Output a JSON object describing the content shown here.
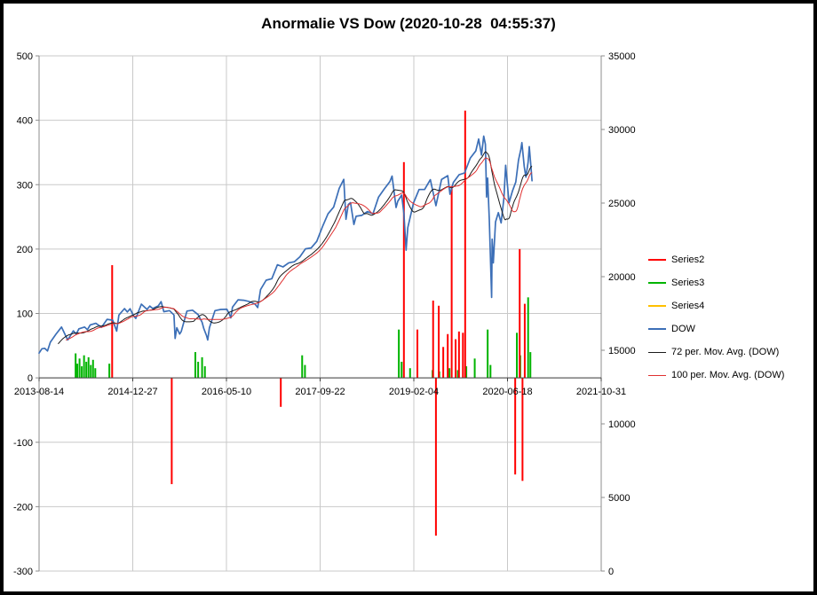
{
  "chart_data": {
    "type": "combo_bar_line",
    "title": "Anormalie VS Dow (2020-10-28  04:55:37)",
    "x_axis": {
      "labels": [
        "2013-08-14",
        "2014-12-27",
        "2016-05-10",
        "2017-09-22",
        "2019-02-04",
        "2020-06-18",
        "2021-10-31"
      ],
      "interval_days": 500
    },
    "left_axis": {
      "min": -300,
      "max": 500,
      "step": 100,
      "ticks": [
        "500",
        "400",
        "300",
        "200",
        "100",
        "0",
        "-100",
        "-200",
        "-300"
      ]
    },
    "right_axis": {
      "min": 0,
      "max": 35000,
      "step": 5000,
      "ticks": [
        "35000",
        "30000",
        "25000",
        "20000",
        "15000",
        "10000",
        "5000",
        "0"
      ]
    },
    "grid": true,
    "legend_position": "right",
    "series": [
      {
        "name": "Series2",
        "type": "bar",
        "axis": "left",
        "color": "#ff0000",
        "width": 2,
        "points": [
          [
            0.13,
            175
          ],
          [
            0.236,
            -165
          ],
          [
            0.43,
            -45
          ],
          [
            0.649,
            335
          ],
          [
            0.673,
            75
          ],
          [
            0.701,
            120
          ],
          [
            0.706,
            -245
          ],
          [
            0.711,
            112
          ],
          [
            0.719,
            48
          ],
          [
            0.727,
            68
          ],
          [
            0.734,
            298
          ],
          [
            0.741,
            60
          ],
          [
            0.747,
            72
          ],
          [
            0.754,
            70
          ],
          [
            0.758,
            415
          ],
          [
            0.847,
            -150
          ],
          [
            0.855,
            200
          ],
          [
            0.86,
            -160
          ],
          [
            0.864,
            115
          ]
        ]
      },
      {
        "name": "Series3",
        "type": "bar",
        "axis": "left",
        "color": "#00b400",
        "width": 2,
        "points": [
          [
            0.065,
            38
          ],
          [
            0.068,
            22
          ],
          [
            0.072,
            30
          ],
          [
            0.076,
            18
          ],
          [
            0.08,
            35
          ],
          [
            0.084,
            25
          ],
          [
            0.088,
            32
          ],
          [
            0.092,
            20
          ],
          [
            0.096,
            28
          ],
          [
            0.1,
            15
          ],
          [
            0.125,
            22
          ],
          [
            0.278,
            40
          ],
          [
            0.283,
            25
          ],
          [
            0.29,
            32
          ],
          [
            0.295,
            18
          ],
          [
            0.468,
            35
          ],
          [
            0.473,
            20
          ],
          [
            0.64,
            75
          ],
          [
            0.645,
            25
          ],
          [
            0.66,
            15
          ],
          [
            0.673,
            20
          ],
          [
            0.7,
            12
          ],
          [
            0.712,
            10
          ],
          [
            0.73,
            15
          ],
          [
            0.745,
            12
          ],
          [
            0.76,
            18
          ],
          [
            0.775,
            30
          ],
          [
            0.798,
            75
          ],
          [
            0.803,
            20
          ],
          [
            0.85,
            70
          ],
          [
            0.856,
            35
          ],
          [
            0.87,
            125
          ],
          [
            0.874,
            40
          ]
        ]
      },
      {
        "name": "Series4",
        "type": "bar",
        "axis": "left",
        "color": "#ffc000",
        "width": 2,
        "points": []
      },
      {
        "name": "DOW",
        "type": "line",
        "axis": "right",
        "color": "#3c6fb7",
        "width": 1.7,
        "points": [
          [
            0.0,
            14810
          ],
          [
            0.005,
            15100
          ],
          [
            0.01,
            15130
          ],
          [
            0.015,
            14950
          ],
          [
            0.02,
            15550
          ],
          [
            0.03,
            16090
          ],
          [
            0.04,
            16580
          ],
          [
            0.047,
            16000
          ],
          [
            0.051,
            15700
          ],
          [
            0.061,
            16320
          ],
          [
            0.066,
            16100
          ],
          [
            0.071,
            16460
          ],
          [
            0.081,
            16580
          ],
          [
            0.086,
            16400
          ],
          [
            0.091,
            16720
          ],
          [
            0.101,
            16830
          ],
          [
            0.111,
            16560
          ],
          [
            0.121,
            17100
          ],
          [
            0.131,
            17040
          ],
          [
            0.138,
            16300
          ],
          [
            0.142,
            17390
          ],
          [
            0.152,
            17830
          ],
          [
            0.157,
            17600
          ],
          [
            0.162,
            17820
          ],
          [
            0.168,
            17350
          ],
          [
            0.172,
            17160
          ],
          [
            0.182,
            18130
          ],
          [
            0.192,
            17780
          ],
          [
            0.197,
            18000
          ],
          [
            0.202,
            17840
          ],
          [
            0.212,
            18010
          ],
          [
            0.217,
            18300
          ],
          [
            0.222,
            17620
          ],
          [
            0.232,
            17690
          ],
          [
            0.24,
            17400
          ],
          [
            0.242,
            15800
          ],
          [
            0.245,
            16530
          ],
          [
            0.25,
            16100
          ],
          [
            0.253,
            16280
          ],
          [
            0.263,
            17660
          ],
          [
            0.273,
            17720
          ],
          [
            0.283,
            17420
          ],
          [
            0.29,
            16900
          ],
          [
            0.293,
            16470
          ],
          [
            0.298,
            15990
          ],
          [
            0.3,
            15700
          ],
          [
            0.303,
            16520
          ],
          [
            0.313,
            17690
          ],
          [
            0.323,
            17770
          ],
          [
            0.334,
            17790
          ],
          [
            0.338,
            17500
          ],
          [
            0.341,
            17200
          ],
          [
            0.344,
            17930
          ],
          [
            0.354,
            18430
          ],
          [
            0.364,
            18400
          ],
          [
            0.374,
            18310
          ],
          [
            0.384,
            18140
          ],
          [
            0.389,
            17900
          ],
          [
            0.394,
            19120
          ],
          [
            0.404,
            19760
          ],
          [
            0.414,
            19860
          ],
          [
            0.424,
            20810
          ],
          [
            0.434,
            20660
          ],
          [
            0.444,
            20940
          ],
          [
            0.454,
            21010
          ],
          [
            0.464,
            21350
          ],
          [
            0.474,
            21890
          ],
          [
            0.484,
            21950
          ],
          [
            0.494,
            22400
          ],
          [
            0.504,
            23380
          ],
          [
            0.514,
            24270
          ],
          [
            0.524,
            24720
          ],
          [
            0.534,
            26000
          ],
          [
            0.542,
            26610
          ],
          [
            0.546,
            23900
          ],
          [
            0.55,
            24900
          ],
          [
            0.554,
            25030
          ],
          [
            0.56,
            23550
          ],
          [
            0.564,
            24100
          ],
          [
            0.574,
            24160
          ],
          [
            0.584,
            24420
          ],
          [
            0.594,
            24270
          ],
          [
            0.604,
            25410
          ],
          [
            0.614,
            25960
          ],
          [
            0.624,
            26460
          ],
          [
            0.628,
            26830
          ],
          [
            0.635,
            24700
          ],
          [
            0.638,
            25120
          ],
          [
            0.645,
            25540
          ],
          [
            0.649,
            24300
          ],
          [
            0.653,
            21800
          ],
          [
            0.656,
            23330
          ],
          [
            0.666,
            25000
          ],
          [
            0.676,
            25920
          ],
          [
            0.686,
            25930
          ],
          [
            0.696,
            26590
          ],
          [
            0.706,
            24820
          ],
          [
            0.716,
            26600
          ],
          [
            0.727,
            26860
          ],
          [
            0.731,
            25600
          ],
          [
            0.737,
            26400
          ],
          [
            0.747,
            26920
          ],
          [
            0.757,
            27050
          ],
          [
            0.767,
            28050
          ],
          [
            0.777,
            28540
          ],
          [
            0.782,
            29350
          ],
          [
            0.787,
            28260
          ],
          [
            0.791,
            29550
          ],
          [
            0.794,
            28990
          ],
          [
            0.796,
            25410
          ],
          [
            0.798,
            26700
          ],
          [
            0.801,
            23850
          ],
          [
            0.805,
            18590
          ],
          [
            0.806,
            22550
          ],
          [
            0.808,
            20940
          ],
          [
            0.812,
            23720
          ],
          [
            0.817,
            24350
          ],
          [
            0.822,
            23650
          ],
          [
            0.827,
            25380
          ],
          [
            0.83,
            27570
          ],
          [
            0.836,
            25020
          ],
          [
            0.842,
            25810
          ],
          [
            0.848,
            26430
          ],
          [
            0.853,
            27930
          ],
          [
            0.857,
            28650
          ],
          [
            0.859,
            29100
          ],
          [
            0.863,
            27500
          ],
          [
            0.866,
            26760
          ],
          [
            0.87,
            27780
          ],
          [
            0.872,
            28840
          ],
          [
            0.875,
            27460
          ],
          [
            0.877,
            26520
          ]
        ]
      },
      {
        "name": "72 per. Mov. Avg. (DOW)",
        "type": "moving_average",
        "source": "DOW",
        "window": 72,
        "axis": "right",
        "color": "#1a1a1a",
        "width": 1,
        "points": []
      },
      {
        "name": "100 per. Mov. Avg. (DOW)",
        "type": "moving_average",
        "source": "DOW",
        "window": 100,
        "axis": "right",
        "color": "#e03030",
        "width": 1,
        "points": []
      }
    ]
  }
}
